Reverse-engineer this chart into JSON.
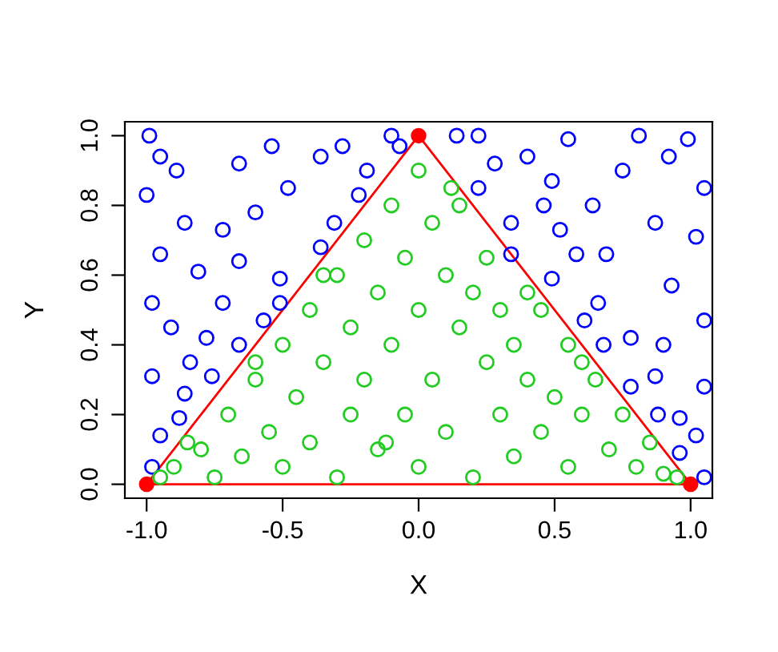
{
  "chart_data": {
    "type": "scatter",
    "xlabel": "X",
    "ylabel": "Y",
    "xlim": [
      -1.08,
      1.08
    ],
    "ylim": [
      -0.04,
      1.04
    ],
    "xticks": [
      {
        "value": -1,
        "label": "-1.0"
      },
      -0.5,
      {
        "value": 0,
        "label": "0.0"
      },
      0.5,
      {
        "value": 1,
        "label": "1.0"
      }
    ],
    "yticks": [
      {
        "value": 0,
        "label": "0.0"
      },
      0.2,
      0.4,
      0.6,
      0.8,
      {
        "value": 1,
        "label": "1.0"
      }
    ],
    "grid": false,
    "legend": false,
    "series": [
      {
        "marker": "circle",
        "color": "#0000ff",
        "x": [
          -0.99,
          -0.95,
          -0.89,
          -1.0,
          -0.86,
          -0.95,
          -0.81,
          -0.98,
          -0.72,
          -0.66,
          -0.91,
          -0.78,
          -0.98,
          -0.86,
          -0.95,
          -0.88,
          -0.98,
          -0.66,
          -0.54,
          -0.48,
          -0.6,
          -0.36,
          -0.31,
          -0.51,
          -0.51,
          -0.28,
          -0.19,
          -0.36,
          -0.22,
          -0.76,
          -0.72,
          -0.84,
          -0.66,
          -0.57,
          -0.1,
          -0.07,
          0.14,
          0.22,
          0.22,
          0.28,
          0.34,
          0.4,
          0.49,
          0.55,
          0.64,
          0.69,
          0.75,
          0.81,
          0.87,
          0.92,
          0.99,
          1.05,
          0.49,
          0.61,
          0.58,
          0.66,
          0.78,
          0.87,
          0.93,
          1.02,
          1.05,
          0.96,
          1.05,
          0.96,
          0.78,
          0.68,
          0.88,
          0.52,
          0.46,
          0.34,
          1.05,
          1.02,
          0.9
        ],
        "values": [
          1.0,
          0.94,
          0.9,
          0.83,
          0.75,
          0.66,
          0.61,
          0.52,
          0.73,
          0.64,
          0.45,
          0.42,
          0.31,
          0.26,
          0.14,
          0.19,
          0.05,
          0.92,
          0.97,
          0.85,
          0.78,
          0.94,
          0.75,
          0.59,
          0.52,
          0.97,
          0.9,
          0.68,
          0.83,
          0.31,
          0.52,
          0.35,
          0.4,
          0.47,
          1.0,
          0.97,
          1.0,
          1.0,
          0.85,
          0.92,
          0.75,
          0.94,
          0.87,
          0.99,
          0.8,
          0.66,
          0.9,
          1.0,
          0.75,
          0.94,
          0.99,
          0.85,
          0.59,
          0.47,
          0.66,
          0.52,
          0.42,
          0.31,
          0.57,
          0.71,
          0.47,
          0.19,
          0.28,
          0.09,
          0.28,
          0.4,
          0.2,
          0.73,
          0.8,
          0.66,
          0.02,
          0.14,
          0.4
        ]
      },
      {
        "marker": "circle",
        "color": "#22cc22",
        "x": [
          -0.9,
          -0.8,
          -0.75,
          -0.7,
          -0.65,
          -0.6,
          -0.55,
          -0.5,
          -0.5,
          -0.45,
          -0.4,
          -0.4,
          -0.35,
          -0.3,
          -0.3,
          -0.25,
          -0.25,
          -0.2,
          -0.2,
          -0.15,
          -0.15,
          -0.1,
          -0.1,
          -0.05,
          -0.05,
          0.0,
          0.0,
          0.0,
          0.05,
          0.05,
          0.1,
          0.1,
          0.15,
          0.15,
          0.2,
          0.2,
          0.25,
          0.25,
          0.3,
          0.3,
          0.35,
          0.35,
          0.4,
          0.45,
          0.45,
          0.5,
          0.55,
          0.55,
          0.6,
          0.65,
          0.7,
          0.75,
          0.8,
          0.85,
          0.9,
          0.95,
          -0.95,
          -0.85,
          0.12,
          -0.12,
          0.4,
          -0.35,
          0.6,
          -0.6
        ],
        "values": [
          0.05,
          0.1,
          0.02,
          0.2,
          0.08,
          0.3,
          0.15,
          0.4,
          0.05,
          0.25,
          0.5,
          0.12,
          0.35,
          0.6,
          0.02,
          0.45,
          0.2,
          0.7,
          0.3,
          0.55,
          0.1,
          0.8,
          0.4,
          0.65,
          0.2,
          0.9,
          0.5,
          0.05,
          0.75,
          0.3,
          0.6,
          0.15,
          0.8,
          0.45,
          0.55,
          0.02,
          0.35,
          0.65,
          0.2,
          0.5,
          0.4,
          0.08,
          0.3,
          0.5,
          0.15,
          0.25,
          0.4,
          0.05,
          0.2,
          0.3,
          0.1,
          0.2,
          0.05,
          0.12,
          0.03,
          0.02,
          0.02,
          0.12,
          0.85,
          0.12,
          0.55,
          0.6,
          0.35,
          0.35
        ]
      },
      {
        "type": "line",
        "marker": "circle",
        "line_style": "solid",
        "color": "#ff0000",
        "x": [
          -1,
          0,
          1
        ],
        "values": [
          0,
          1,
          0
        ]
      },
      {
        "type": "line",
        "line_style": "solid",
        "color": "#ff0000",
        "x": [
          -1,
          1
        ],
        "values": [
          0,
          0
        ]
      }
    ]
  }
}
